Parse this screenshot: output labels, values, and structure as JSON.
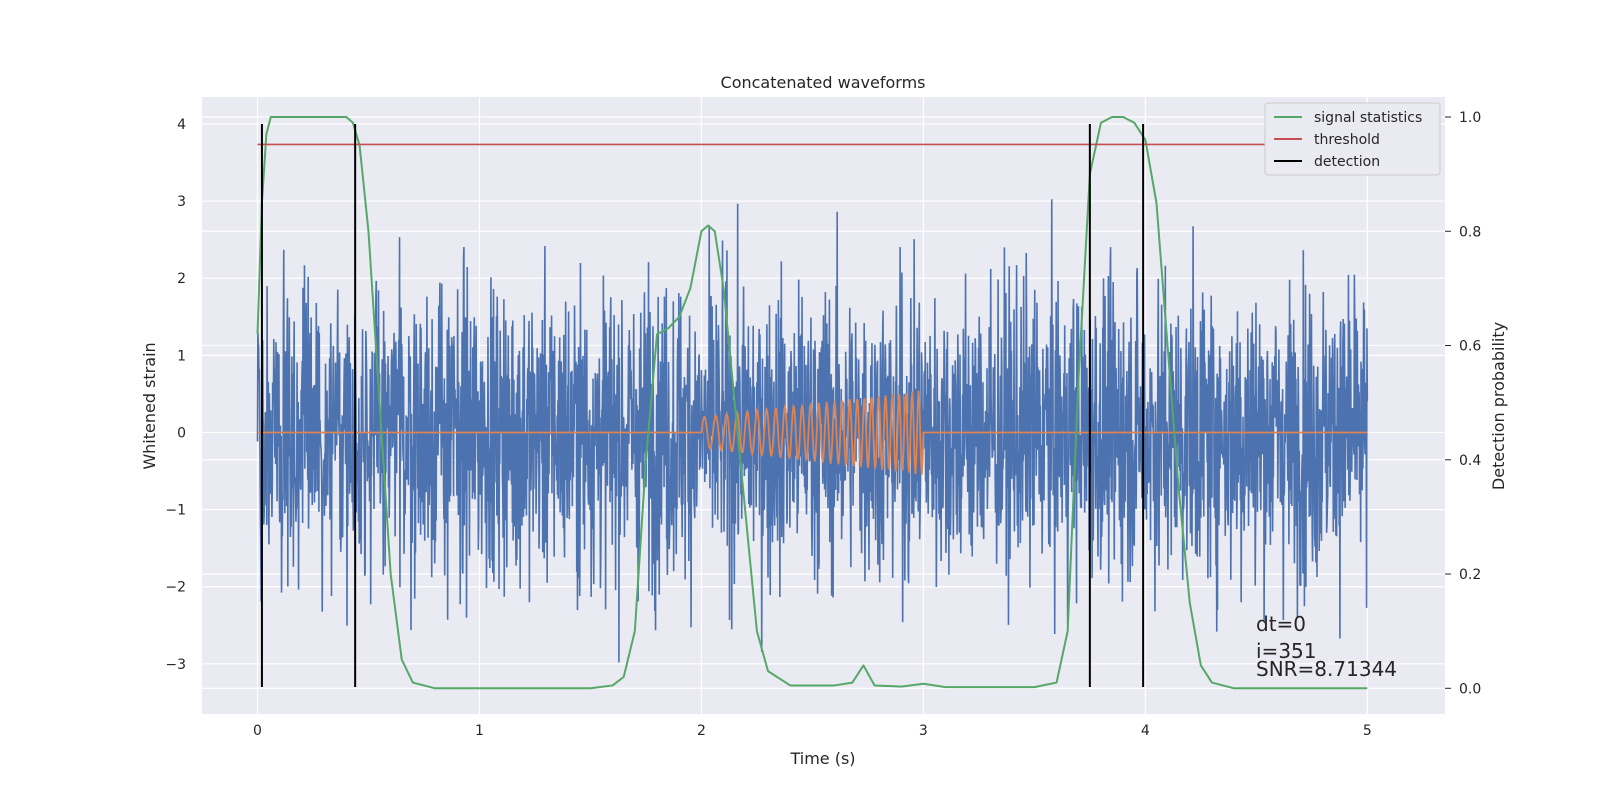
{
  "chart_data": {
    "type": "line",
    "title": "Concatenated waveforms",
    "xlabel": "Time (s)",
    "ylabel_left": "Whitened strain",
    "ylabel_right": "Detection probability",
    "xlim": [
      -0.25,
      5.35
    ],
    "ylim_left": [
      -3.65,
      4.35
    ],
    "ylim_right": [
      -0.045,
      1.035
    ],
    "x_ticks": [
      0,
      1,
      2,
      3,
      4,
      5
    ],
    "y_ticks_left": [
      -3,
      -2,
      -1,
      0,
      1,
      2,
      3,
      4
    ],
    "y_ticks_right": [
      0.0,
      0.2,
      0.4,
      0.6,
      0.8,
      1.0
    ],
    "y_tick_labels_left": [
      "−3",
      "−2",
      "−1",
      "0",
      "1",
      "2",
      "3",
      "4"
    ],
    "y_tick_labels_right": [
      "0.0",
      "0.2",
      "0.4",
      "0.6",
      "0.8",
      "1.0"
    ],
    "grid": true,
    "legend_position": "top-right",
    "legend": [
      "signal statistics",
      "threshold",
      "detection"
    ],
    "colors": {
      "noise": "#4c72b0",
      "template": "#dd8452",
      "signal_statistics": "#55a868",
      "threshold": "#c44e52",
      "detection": "#000000",
      "background": "#eaeaf2",
      "grid": "#ffffff"
    },
    "series": [
      {
        "name": "signal statistics",
        "axis": "right",
        "x": [
          0.0,
          0.02,
          0.04,
          0.06,
          0.1,
          0.2,
          0.3,
          0.4,
          0.43,
          0.46,
          0.5,
          0.55,
          0.6,
          0.65,
          0.7,
          0.8,
          1.0,
          1.5,
          1.6,
          1.65,
          1.7,
          1.75,
          1.8,
          1.85,
          1.9,
          1.95,
          2.0,
          2.03,
          2.06,
          2.1,
          2.15,
          2.2,
          2.25,
          2.3,
          2.4,
          2.6,
          2.68,
          2.73,
          2.78,
          2.9,
          3.0,
          3.1,
          3.5,
          3.6,
          3.65,
          3.7,
          3.75,
          3.8,
          3.85,
          3.9,
          3.95,
          4.0,
          4.05,
          4.1,
          4.15,
          4.2,
          4.25,
          4.3,
          4.4,
          4.6,
          5.0
        ],
        "y": [
          0.62,
          0.85,
          0.97,
          1.0,
          1.0,
          1.0,
          1.0,
          1.0,
          0.99,
          0.95,
          0.8,
          0.5,
          0.2,
          0.05,
          0.01,
          0.0,
          0.0,
          0.0,
          0.005,
          0.02,
          0.1,
          0.4,
          0.62,
          0.63,
          0.65,
          0.7,
          0.8,
          0.81,
          0.8,
          0.7,
          0.5,
          0.3,
          0.1,
          0.03,
          0.005,
          0.005,
          0.01,
          0.04,
          0.005,
          0.003,
          0.008,
          0.002,
          0.002,
          0.01,
          0.1,
          0.55,
          0.9,
          0.99,
          1.0,
          1.0,
          0.99,
          0.96,
          0.85,
          0.6,
          0.35,
          0.15,
          0.04,
          0.01,
          0.0,
          0.0,
          0.0
        ]
      },
      {
        "name": "threshold",
        "axis": "right",
        "x": [
          0,
          5
        ],
        "y": [
          0.952,
          0.952
        ]
      },
      {
        "name": "detection",
        "axis": "left",
        "type": "vlines",
        "x": [
          0.02,
          0.44,
          3.75,
          3.99
        ],
        "ymin": -3.3,
        "ymax": 4.0
      }
    ],
    "noise_series": {
      "axis": "left",
      "x_range": [
        0,
        5
      ],
      "std": 0.95,
      "peak": 4.0,
      "min": -3.3
    },
    "template_series": {
      "axis": "left",
      "x_range": [
        2.0,
        3.0
      ],
      "amplitude_start": 0.2,
      "amplitude_end": 0.55,
      "cycles": 27
    },
    "annotations": {
      "dt": "dt=0",
      "i": "i=351",
      "snr": "SNR=8.71344"
    }
  }
}
